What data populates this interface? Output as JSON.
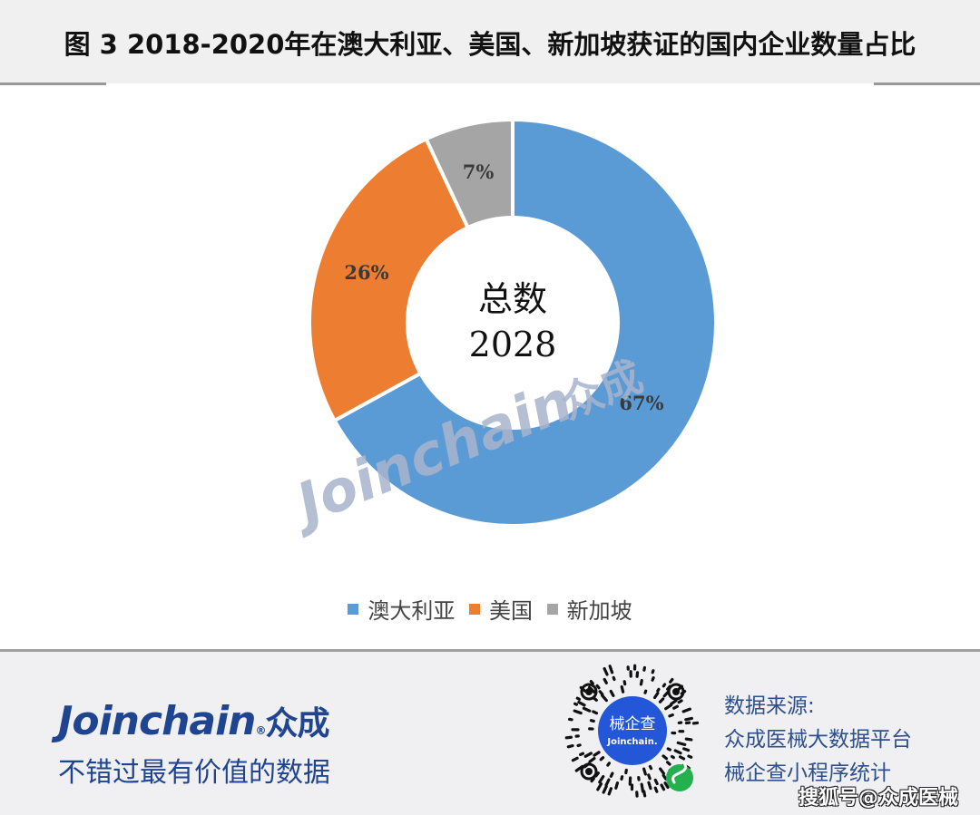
{
  "header": {
    "title": "图 3 2018-2020年在澳大利亚、美国、新加坡获证的国内企业数量占比"
  },
  "chart_data": {
    "type": "pie",
    "subtype": "donut",
    "title": "图 3 2018-2020年在澳大利亚、美国、新加坡获证的国内企业数量占比",
    "categories": [
      "澳大利亚",
      "美国",
      "新加坡"
    ],
    "values": [
      67,
      26,
      7
    ],
    "unit": "%",
    "colors": [
      "#5b9bd5",
      "#ed7d31",
      "#a5a5a5"
    ],
    "labels": [
      "67%",
      "26%",
      "7%"
    ],
    "center_text": [
      "总数",
      "2028"
    ],
    "total": 2028,
    "start_angle": "12 o'clock, clockwise",
    "legend_position": "bottom"
  },
  "chart": {
    "center_line1": "总数",
    "center_line2": "2028",
    "watermark": "Joinchain",
    "watermark_cn": "众成",
    "labels": {
      "australia": "67%",
      "usa": "26%",
      "singapore": "7%"
    }
  },
  "legend": {
    "items": [
      {
        "label": "澳大利亚",
        "color": "#5b9bd5"
      },
      {
        "label": "美国",
        "color": "#ed7d31"
      },
      {
        "label": "新加坡",
        "color": "#a5a5a5"
      }
    ]
  },
  "footer": {
    "brand": "Joinchain",
    "brand_reg": "®",
    "brand_cn": "众成",
    "slogan": "不错过最有价值的数据",
    "qr_center_cn": "械企查",
    "qr_center_en": "Joinchain.",
    "source_title": "数据来源:",
    "source_line1": "众成医械大数据平台",
    "source_line2": "械企查小程序统计",
    "sohu_credit": "搜狐号@众成医械",
    "brand_color": "#1f4591"
  }
}
